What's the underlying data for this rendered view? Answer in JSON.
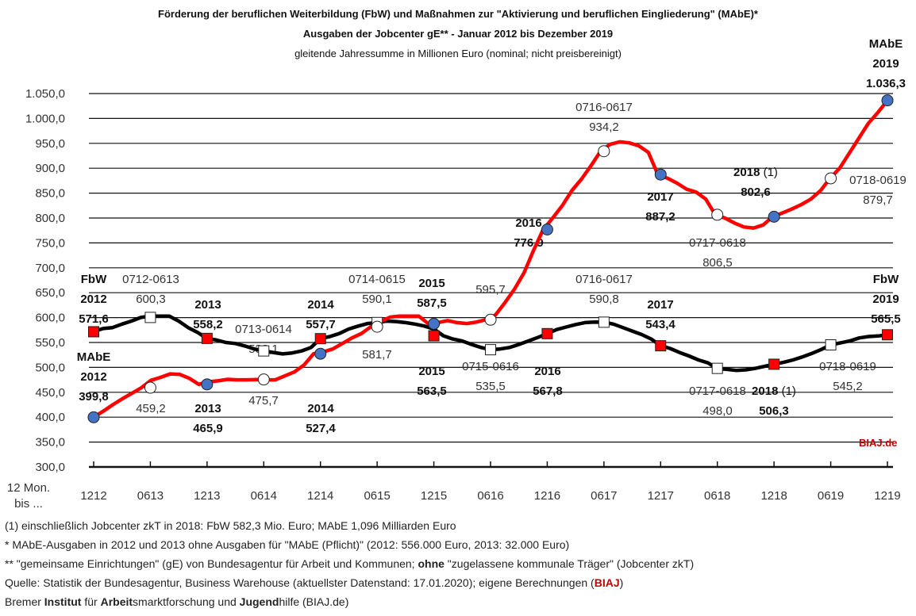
{
  "chart_data": {
    "type": "line",
    "title": "Förderung der beruflichen Weiterbildung (FbW) und Maßnahmen zur \"Aktivierung und beruflichen Eingliederung\" (MAbE)*",
    "subtitle": "Ausgaben der Jobcenter gE** - Januar 2012 bis Dezember 2019",
    "subtitle2": "gleitende Jahressumme in Millionen Euro (nominal; nicht preisbereinigt)",
    "xlabel": "12 Mon. bis ...",
    "xlabel_line1": "12 Mon.",
    "xlabel_line2": "bis ...",
    "ylabel": "",
    "ylim": [
      300,
      1050
    ],
    "yticks": [
      "300,0",
      "350,0",
      "400,0",
      "450,0",
      "500,0",
      "550,0",
      "600,0",
      "650,0",
      "700,0",
      "750,0",
      "800,0",
      "850,0",
      "900,0",
      "950,0",
      "1.000,0",
      "1.050,0"
    ],
    "categories": [
      "1212",
      "0613",
      "1213",
      "0614",
      "1214",
      "0615",
      "1215",
      "0616",
      "1216",
      "0617",
      "1217",
      "0618",
      "1218",
      "0619",
      "1219"
    ],
    "grid": true,
    "watermark": "BIAJ.de",
    "series": [
      {
        "name": "FbW",
        "color": "#000000",
        "marker_color": "#ff0000",
        "values": [
          571.6,
          600.3,
          558.2,
          533.1,
          557.7,
          590.1,
          563.5,
          535.5,
          567.8,
          590.8,
          543.4,
          498.0,
          506.3,
          545.2,
          565.5
        ],
        "curve": [
          571.6,
          578,
          580,
          587,
          593,
          600.3,
          603,
          603,
          603,
          593,
          580,
          570,
          558.2,
          555,
          550,
          548,
          543,
          537,
          533.1,
          530,
          527,
          529,
          533,
          540,
          557.7,
          562,
          568,
          577,
          583,
          588,
          590.1,
          593,
          592,
          590,
          587,
          583,
          577,
          563.5,
          557,
          553,
          546,
          540,
          535.5,
          537,
          540,
          546,
          553,
          560,
          567.8,
          576,
          581,
          586,
          590,
          591,
          590.8,
          587,
          580,
          573,
          566,
          557,
          543.4,
          538,
          530,
          523,
          515,
          509,
          498.0,
          496,
          494,
          495,
          498,
          502,
          506.3,
          510,
          515,
          521,
          528,
          536,
          545.2,
          549,
          553,
          559,
          562,
          563,
          565.5
        ]
      },
      {
        "name": "MAbE",
        "color": "#ff0000",
        "marker_color": "#4472c4",
        "values": [
          399.8,
          459.2,
          465.9,
          475.7,
          527.4,
          581.7,
          587.5,
          595.7,
          776.9,
          934.2,
          887.2,
          806.5,
          802.6,
          879.7,
          1036.3
        ],
        "curve": [
          399.8,
          412,
          425,
          437,
          448,
          459.2,
          474,
          480,
          487,
          486,
          478,
          465.9,
          471,
          473,
          476,
          475,
          475,
          475.7,
          475,
          475,
          483,
          491,
          505,
          527.4,
          531,
          537,
          548,
          559,
          568,
          581.7,
          592,
          601,
          603,
          603,
          603,
          587.5,
          590,
          594,
          590,
          588,
          591,
          595.7,
          605,
          630,
          657,
          690,
          735,
          776.9,
          800,
          825,
          855,
          878,
          905,
          934.2,
          948,
          953,
          951,
          945,
          932,
          887.2,
          880,
          870,
          858,
          852,
          838,
          806.5,
          800,
          790,
          782,
          780,
          786,
          802.6,
          810,
          818,
          827,
          838,
          855,
          879.7,
          900,
          930,
          960,
          990,
          1012,
          1036.3
        ]
      }
    ],
    "annotations": [
      {
        "series": "FbW",
        "header": "FbW",
        "period": "2012",
        "value": "571,6",
        "bold": true
      },
      {
        "series": "FbW",
        "period": "0712-0613",
        "value": "600,3",
        "bold": false
      },
      {
        "series": "FbW",
        "period": "2013",
        "value": "558,2",
        "bold": true
      },
      {
        "series": "FbW",
        "period": "0713-0614",
        "value": "533,1",
        "bold": false
      },
      {
        "series": "FbW",
        "period": "2014",
        "value": "557,7",
        "bold": true
      },
      {
        "series": "FbW",
        "period": "0714-0615",
        "value": "590,1",
        "bold": false
      },
      {
        "series": "FbW",
        "period": "2015",
        "value": "563,5",
        "bold": true
      },
      {
        "series": "FbW",
        "period": "0715-0616",
        "value": "535,5",
        "bold": false
      },
      {
        "series": "FbW",
        "period": "2016",
        "value": "567,8",
        "bold": true
      },
      {
        "series": "FbW",
        "period": "0716-0617",
        "value": "590,8",
        "bold": false
      },
      {
        "series": "FbW",
        "period": "2017",
        "value": "543,4",
        "bold": true
      },
      {
        "series": "FbW",
        "period": "0717-0618",
        "value": "498,0",
        "bold": false
      },
      {
        "series": "FbW",
        "period": "2018",
        "note": "(1)",
        "value": "506,3",
        "bold": true
      },
      {
        "series": "FbW",
        "period": "0718-0619",
        "value": "545,2",
        "bold": false
      },
      {
        "series": "FbW",
        "header": "FbW",
        "period": "2019",
        "value": "565,5",
        "bold": true
      },
      {
        "series": "MAbE",
        "header": "MAbE",
        "period": "2012",
        "value": "399,8",
        "bold": true
      },
      {
        "series": "MAbE",
        "period": "",
        "value": "459,2",
        "bold": false
      },
      {
        "series": "MAbE",
        "period": "2013",
        "value": "465,9",
        "bold": true
      },
      {
        "series": "MAbE",
        "period": "",
        "value": "475,7",
        "bold": false
      },
      {
        "series": "MAbE",
        "period": "2014",
        "value": "527,4",
        "bold": true
      },
      {
        "series": "MAbE",
        "period": "",
        "value": "581,7",
        "bold": false
      },
      {
        "series": "MAbE",
        "period": "2015",
        "value": "587,5",
        "bold": true
      },
      {
        "series": "MAbE",
        "period": "",
        "value": "595,7",
        "bold": false
      },
      {
        "series": "MAbE",
        "period": "2016",
        "value": "776,9",
        "bold": true
      },
      {
        "series": "MAbE",
        "period": "0716-0617",
        "value": "934,2",
        "bold": false
      },
      {
        "series": "MAbE",
        "period": "2017",
        "value": "887,2",
        "bold": true
      },
      {
        "series": "MAbE",
        "period": "0717-0618",
        "value": "806,5",
        "bold": false
      },
      {
        "series": "MAbE",
        "period": "2018",
        "note": "(1)",
        "value": "802,6",
        "bold": true
      },
      {
        "series": "MAbE",
        "period": "0718-0619",
        "value": "879,7",
        "bold": false
      },
      {
        "series": "MAbE",
        "header": "MAbE",
        "period": "2019",
        "value": "1.036,3",
        "bold": true
      }
    ]
  },
  "footnotes": {
    "f1": "(1) einschließlich Jobcenter zkT in 2018: FbW 582,3 Mio. Euro; MAbE 1,096 Milliarden Euro",
    "f2": "* MAbE-Ausgaben in 2012 und 2013 ohne Ausgaben für \"MAbE (Pflicht)\" (2012: 556.000 Euro, 2013: 32.000 Euro)",
    "f3_a": "** \"gemeinsame Einrichtungen\" (gE) von Bundesagentur für Arbeit und Kommunen; ",
    "f3_b": "ohne",
    "f3_c": " \"zugelassene kommunale Träger\" (Jobcenter zkT)",
    "f4_a": "Quelle: Statistik der Bundesagentur, Business Warehouse (aktuellster Datenstand: 17.01.2020); eigene Berechnungen (",
    "f4_b": "BIAJ",
    "f4_c": ")",
    "f5_a": "Bremer ",
    "f5_b": "Institut",
    "f5_c": " für ",
    "f5_d": "Arbeit",
    "f5_e": "smarktforschung und ",
    "f5_f": "Jugend",
    "f5_g": "hilfe (BIAJ.de)"
  }
}
